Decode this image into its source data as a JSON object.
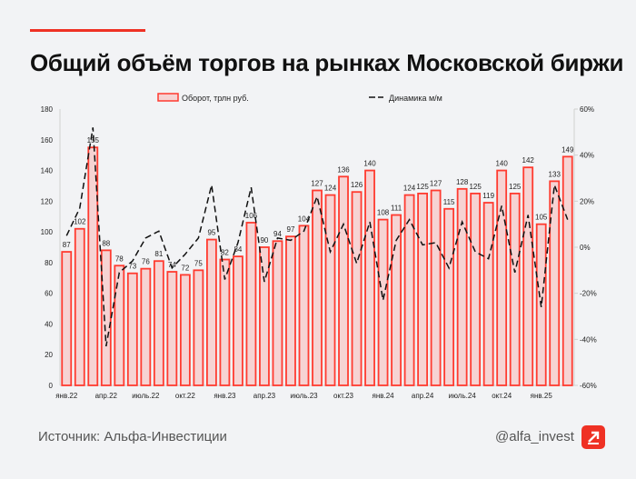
{
  "title": "Общий объём торгов на рынках Московской биржи",
  "footer": {
    "source": "Источник: Альфа-Инвестиции",
    "handle": "@alfa_invest"
  },
  "colors": {
    "accent": "#ef3124",
    "bar_fill": "#f6d3d3",
    "bar_stroke": "#ff3b30",
    "line": "#111111",
    "background": "#f2f3f5"
  },
  "chart_data": {
    "type": "bar+line",
    "legend": [
      "Оборот, трлн руб.",
      "Динамика м/м"
    ],
    "legend_placement": "top",
    "x_tick_labels": [
      "янв.22",
      "апр.22",
      "июль.22",
      "окт.22",
      "янв.23",
      "апр.23",
      "июль.23",
      "окт.23",
      "янв.24",
      "апр.24",
      "июль.24",
      "окт.24",
      "янв.25"
    ],
    "left_axis": {
      "ylim": [
        0,
        180
      ],
      "ticks": [
        0,
        20,
        40,
        60,
        80,
        100,
        120,
        140,
        160,
        180
      ]
    },
    "right_axis": {
      "ylim": [
        -60,
        60
      ],
      "ticks": [
        "-60%",
        "-40%",
        "-20%",
        "0%",
        "20%",
        "40%",
        "60%"
      ]
    },
    "series": [
      {
        "name": "Оборот, трлн руб.",
        "type": "bar",
        "axis": "left",
        "values": [
          87,
          102,
          155,
          88,
          78,
          73,
          76,
          81,
          74,
          72,
          75,
          95,
          82,
          84,
          106,
          90,
          94,
          97,
          104,
          127,
          124,
          136,
          126,
          140,
          108,
          111,
          124,
          125,
          127,
          115,
          128,
          125,
          119,
          140,
          125,
          142,
          105,
          133,
          149
        ]
      },
      {
        "name": "Динамика м/м",
        "type": "line",
        "axis": "right",
        "dashed": true,
        "values": [
          5,
          17,
          52,
          -43,
          -11,
          -6,
          4,
          7,
          -9,
          -3,
          4,
          27,
          -14,
          2,
          26,
          -15,
          4,
          3,
          7,
          22,
          -2,
          10,
          -7,
          11,
          -23,
          3,
          12,
          1,
          2,
          -9,
          11,
          -2,
          -5,
          18,
          -11,
          14,
          -26,
          27,
          12
        ]
      }
    ],
    "grid": false
  }
}
